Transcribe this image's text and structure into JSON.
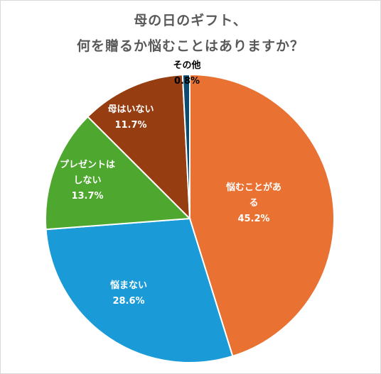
{
  "chart_data": {
    "type": "pie",
    "title_lines": [
      "母の日のギフト、",
      "何を贈るか悩むことはありますか？"
    ],
    "slices": [
      {
        "label_lines": [
          "悩むことがあ",
          "る"
        ],
        "value_label": "45.2%",
        "value": 45.2,
        "color": "#e97132"
      },
      {
        "label_lines": [
          "悩まない"
        ],
        "value_label": "28.6%",
        "value": 28.6,
        "color": "#1a9bd7"
      },
      {
        "label_lines": [
          "プレゼントは",
          "しない"
        ],
        "value_label": "13.7%",
        "value": 13.7,
        "color": "#4ea72e"
      },
      {
        "label_lines": [
          "母はいない"
        ],
        "value_label": "11.7%",
        "value": 11.7,
        "color": "#963e11"
      },
      {
        "label_lines": [
          "その他"
        ],
        "value_label": "0.8%",
        "value": 0.8,
        "color": "#0d4c6e"
      }
    ]
  }
}
